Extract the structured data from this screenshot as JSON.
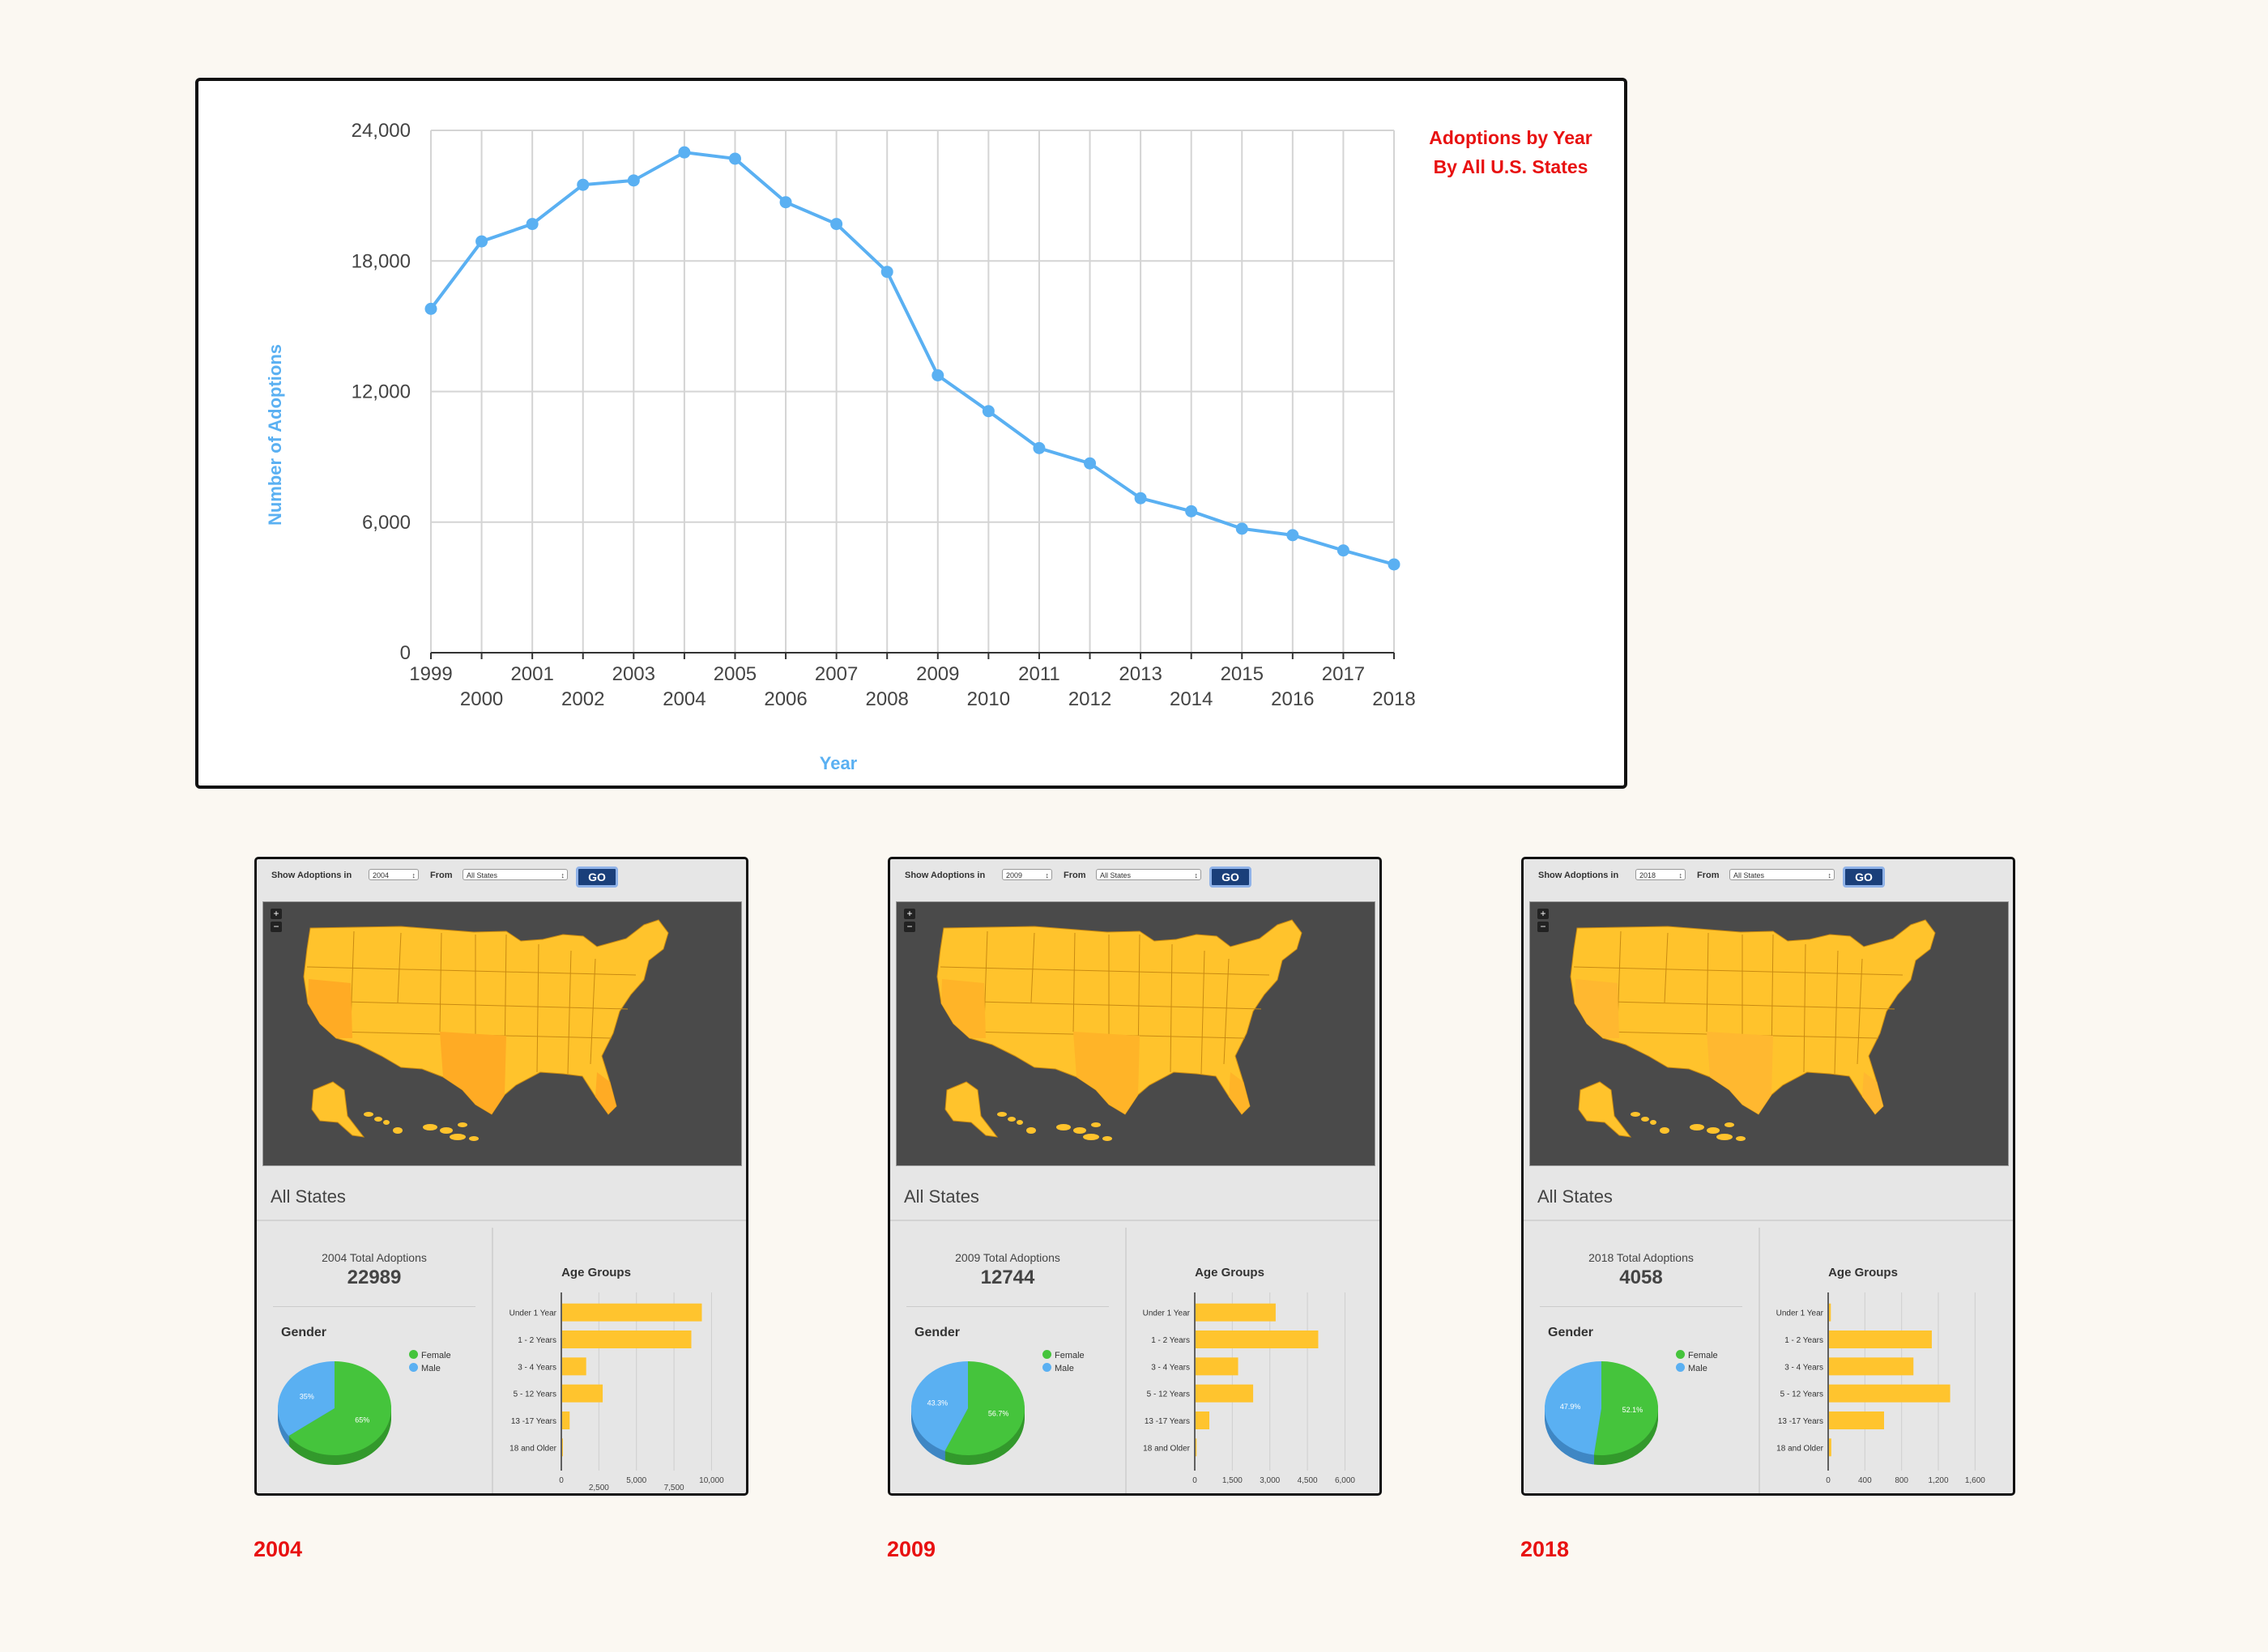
{
  "main_chart": {
    "title": "Adoptions by Year By All U.S. States",
    "xlabel": "Year",
    "ylabel": "Number of Adoptions",
    "line_color": "#5ab0f2",
    "title_color": "#e81111"
  },
  "chart_data": [
    {
      "type": "line",
      "title": "Adoptions by Year By All U.S. States",
      "xlabel": "Year",
      "ylabel": "Number of Adoptions",
      "x": [
        "1999",
        "2000",
        "2001",
        "2002",
        "2003",
        "2004",
        "2005",
        "2006",
        "2007",
        "2008",
        "2009",
        "2010",
        "2011",
        "2012",
        "2013",
        "2014",
        "2015",
        "2016",
        "2017",
        "2018"
      ],
      "series": [
        {
          "values": [
            15800,
            18900,
            19700,
            21500,
            21700,
            22989,
            22700,
            20700,
            19700,
            17500,
            12744,
            11100,
            9400,
            8700,
            7100,
            6500,
            5700,
            5400,
            4700,
            4058
          ]
        }
      ],
      "ylim": [
        0,
        24000
      ],
      "yticks": [
        "0",
        "6,000",
        "12,000",
        "18,000",
        "24,000"
      ],
      "grid": true
    },
    {
      "type": "pie",
      "title": "Gender",
      "year": "2004",
      "labels": [
        "Female",
        "Male"
      ],
      "values": [
        65,
        35
      ],
      "value_labels": [
        "65%",
        "35%"
      ]
    },
    {
      "type": "bar",
      "title": "Age Groups",
      "year": "2004",
      "categories": [
        "Under 1 Year",
        "1 - 2 Years",
        "3 - 4 Years",
        "5 - 12 Years",
        "13 -17 Years",
        "18 and Older"
      ],
      "values": [
        9300,
        8600,
        1600,
        2700,
        500,
        50
      ],
      "xlim": [
        0,
        11000
      ],
      "xticks": [
        "0",
        "2,500",
        "5,000",
        "7,500",
        "10,000"
      ]
    },
    {
      "type": "pie",
      "title": "Gender",
      "year": "2009",
      "labels": [
        "Female",
        "Male"
      ],
      "values": [
        56.7,
        43.3
      ],
      "value_labels": [
        "56.7%",
        "43.3%"
      ]
    },
    {
      "type": "bar",
      "title": "Age Groups",
      "year": "2009",
      "categories": [
        "Under 1 Year",
        "1 - 2 Years",
        "3 - 4 Years",
        "5 - 12 Years",
        "13 -17 Years",
        "18 and Older"
      ],
      "values": [
        3200,
        4900,
        1700,
        2300,
        550,
        40
      ],
      "xlim": [
        0,
        6600
      ],
      "xticks": [
        "0",
        "1,500",
        "3,000",
        "4,500",
        "6,000"
      ]
    },
    {
      "type": "pie",
      "title": "Gender",
      "year": "2018",
      "labels": [
        "Female",
        "Male"
      ],
      "values": [
        52.1,
        47.9
      ],
      "value_labels": [
        "52.1%",
        "47.9%"
      ]
    },
    {
      "type": "bar",
      "title": "Age Groups",
      "year": "2018",
      "categories": [
        "Under 1 Year",
        "1 - 2 Years",
        "3 - 4 Years",
        "5 - 12 Years",
        "13 -17 Years",
        "18 and Older"
      ],
      "values": [
        20,
        1120,
        920,
        1320,
        600,
        25
      ],
      "xlim": [
        0,
        1800
      ],
      "xticks": [
        "0",
        "400",
        "800",
        "1,200",
        "1,600"
      ]
    }
  ],
  "panels": [
    {
      "show_label": "Show Adoptions in",
      "year_select": "2004",
      "from_label": "From",
      "state_select": "All States",
      "go": "GO",
      "region": "All States",
      "total_label": "2004 Total Adoptions",
      "total_value": "22989",
      "gender_title": "Gender",
      "female": "Female",
      "male": "Male",
      "age_title": "Age Groups",
      "pct_female": "65%",
      "pct_male": "35%",
      "caption": "2004"
    },
    {
      "show_label": "Show Adoptions in",
      "year_select": "2009",
      "from_label": "From",
      "state_select": "All States",
      "go": "GO",
      "region": "All States",
      "total_label": "2009 Total Adoptions",
      "total_value": "12744",
      "gender_title": "Gender",
      "female": "Female",
      "male": "Male",
      "age_title": "Age Groups",
      "pct_female": "56.7%",
      "pct_male": "43.3%",
      "caption": "2009"
    },
    {
      "show_label": "Show Adoptions in",
      "year_select": "2018",
      "from_label": "From",
      "state_select": "All States",
      "go": "GO",
      "region": "All States",
      "total_label": "2018 Total Adoptions",
      "total_value": "4058",
      "gender_title": "Gender",
      "female": "Female",
      "male": "Male",
      "age_title": "Age Groups",
      "pct_female": "52.1%",
      "pct_male": "47.9%",
      "caption": "2018"
    }
  ],
  "colors": {
    "female": "#45c43c",
    "male": "#5ab0f2",
    "bar": "#ffc42e",
    "map_bg": "#4a4a4a",
    "state": "#ffc32c",
    "go_button": "#1a3f7a"
  },
  "icons": {
    "zoom_in": "plus-icon",
    "zoom_out": "minus-icon",
    "select": "updown-arrow-icon"
  }
}
